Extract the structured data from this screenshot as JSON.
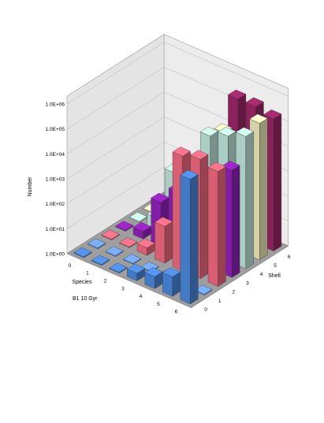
{
  "chart_data": {
    "type": "bar",
    "subtype": "3d-column-grid",
    "y_scale": "log",
    "ylim": [
      1,
      1000000
    ],
    "y_ticks": [
      "1.0E+00",
      "1.0E+01",
      "1.0E+02",
      "1.0E+03",
      "1.0E+04",
      "1.0E+05",
      "1.0E+06"
    ],
    "ylabel": "Number",
    "species_label": "Species",
    "shell_label": "Shell",
    "annotation": "B1 10 Gyr",
    "species_categories": [
      "0",
      "1",
      "2",
      "3",
      "4",
      "5",
      "6"
    ],
    "shell_categories": [
      "0",
      "1",
      "2",
      "3",
      "4",
      "5",
      "6"
    ],
    "grid": true,
    "series": [
      {
        "name": "0",
        "color": "#4f8fe8",
        "values": [
          1,
          1,
          1,
          2,
          3,
          6,
          100000
        ]
      },
      {
        "name": "1",
        "color": "#74a8f0",
        "values": [
          1,
          1,
          1,
          1,
          1,
          1,
          1
        ]
      },
      {
        "name": "2",
        "color": "#ff6f86",
        "values": [
          1,
          1,
          2,
          30,
          40000,
          60000,
          40000
        ]
      },
      {
        "name": "3",
        "color": "#9a22c4",
        "values": [
          1,
          2,
          60,
          300,
          900,
          5000,
          20000
        ]
      },
      {
        "name": "4",
        "color": "#c9f2e6",
        "values": [
          1,
          3,
          400,
          2000,
          50000,
          100000,
          200000
        ]
      },
      {
        "name": "5",
        "color": "#fbf6c4",
        "values": [
          1,
          1,
          1,
          1000,
          30000,
          30000,
          300000
        ]
      },
      {
        "name": "6",
        "color": "#a3286c",
        "values": [
          1,
          1,
          1,
          1,
          300000,
          300000,
          200000
        ]
      }
    ]
  }
}
